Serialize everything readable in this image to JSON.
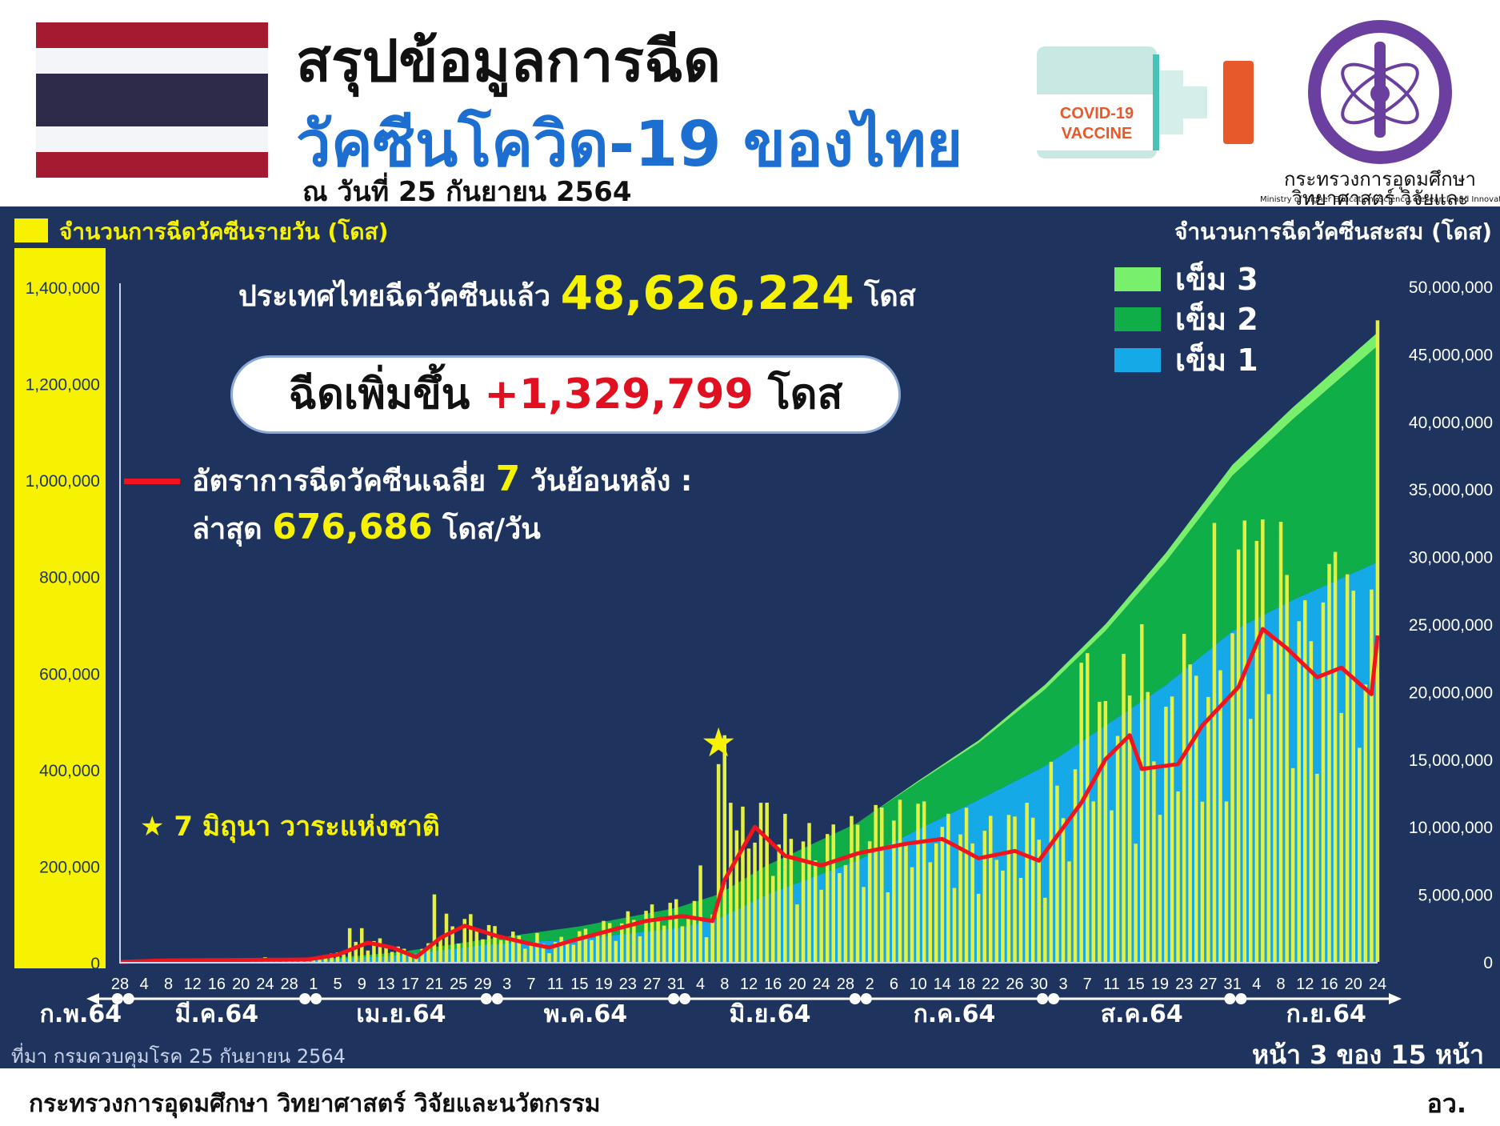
{
  "header": {
    "title_line1": "สรุปข้อมูลการฉีด",
    "title_line2": "วัคซีนโควิด-19 ของไทย",
    "date": "ณ วันที่ 25 กันยายน 2564",
    "vial_text_1": "COVID-19",
    "vial_text_2": "VACCINE",
    "ministry_th": "กระทรวงการอุดมศึกษา วิทยาศาสตร์ วิจัยและนวัตกรรม",
    "ministry_en": "Ministry of Higher Education, Science, Research and Innovation"
  },
  "summary": {
    "total_prefix": "ประเทศไทยฉีดวัคซีนแล้ว",
    "total_value": "48,626,224",
    "total_unit": "โดส",
    "increase_prefix": "ฉีดเพิ่มขึ้น",
    "increase_value": "+1,329,799",
    "increase_unit": "โดส",
    "avg_line1_a": "อัตราการฉีดวัคซีนเฉลี่ย",
    "avg_line1_days": "7",
    "avg_line1_b": "วันย้อนหลัง :",
    "avg_line2_a": "ล่าสุด",
    "avg_value": "676,686",
    "avg_unit": "โดส/วัน",
    "star_note": "7 มิถุนา วาระแห่งชาติ"
  },
  "labels": {
    "daily_axis": "จำนวนการฉีดวัคซีนรายวัน (โดส)",
    "cum_axis": "จำนวนการฉีดวัคซีนสะสม (โดส)",
    "source": "ที่มา กรมควบคุมโรค 25 กันยายน 2564",
    "page": "หน้า 3 ของ 15 หน้า",
    "footer_left": "กระทรวงการอุดมศึกษา วิทยาศาสตร์ วิจัยและนวัตกรรม",
    "footer_right": "อว."
  },
  "colors": {
    "panel": "#1e345f",
    "daily_bar": "#e4f043",
    "dose1": "#16a9e8",
    "dose2": "#0fae48",
    "dose3": "#78f06c",
    "avg_line": "#f0141e",
    "accent_yellow": "#f7f300"
  },
  "chart_data": {
    "type": "bar",
    "secondary_type": "area",
    "x_start_date": "2021-02-28",
    "x_end_date": "2021-09-24",
    "y_left": {
      "min": 0,
      "max": 1400000,
      "ticks": [
        "0",
        "200,000",
        "400,000",
        "600,000",
        "800,000",
        "1,000,000",
        "1,200,000",
        "1,400,000"
      ]
    },
    "y_right": {
      "min": 0,
      "max": 50000000,
      "ticks": [
        "0",
        "5,000,000",
        "10,000,000",
        "15,000,000",
        "20,000,000",
        "25,000,000",
        "30,000,000",
        "35,000,000",
        "40,000,000",
        "45,000,000",
        "50,000,000"
      ]
    },
    "x_tick_labels": [
      "28",
      "4",
      "8",
      "12",
      "16",
      "20",
      "24",
      "28",
      "1",
      "5",
      "9",
      "13",
      "17",
      "21",
      "25",
      "29",
      "3",
      "7",
      "11",
      "15",
      "19",
      "23",
      "27",
      "31",
      "4",
      "8",
      "12",
      "16",
      "20",
      "24",
      "28",
      "2",
      "6",
      "10",
      "14",
      "18",
      "22",
      "26",
      "30",
      "3",
      "7",
      "11",
      "15",
      "19",
      "23",
      "27",
      "31",
      "4",
      "8",
      "12",
      "16",
      "20",
      "24"
    ],
    "months": [
      "ก.พ.64",
      "มี.ค.64",
      "เม.ย.64",
      "พ.ค.64",
      "มิ.ย.64",
      "ก.ค.64",
      "ส.ค.64",
      "ก.ย.64"
    ],
    "series": [
      {
        "name": "เข็ม 3",
        "axis": "right",
        "type": "area",
        "points": [
          [
            "2021-02-28",
            0
          ],
          [
            "2021-04-30",
            0
          ],
          [
            "2021-06-30",
            0
          ],
          [
            "2021-07-20",
            200000
          ],
          [
            "2021-08-10",
            500000
          ],
          [
            "2021-08-31",
            800000
          ],
          [
            "2021-09-24",
            1000000
          ]
        ]
      },
      {
        "name": "เข็ม 2",
        "axis": "right",
        "type": "area",
        "points": [
          [
            "2021-02-28",
            0
          ],
          [
            "2021-03-31",
            30000
          ],
          [
            "2021-04-30",
            400000
          ],
          [
            "2021-05-31",
            1500000
          ],
          [
            "2021-06-30",
            2800000
          ],
          [
            "2021-07-20",
            4200000
          ],
          [
            "2021-08-10",
            7000000
          ],
          [
            "2021-08-31",
            11500000
          ],
          [
            "2021-09-24",
            16000000
          ]
        ]
      },
      {
        "name": "เข็ม 1",
        "axis": "right",
        "type": "area",
        "points": [
          [
            "2021-02-28",
            0
          ],
          [
            "2021-03-31",
            100000
          ],
          [
            "2021-04-15",
            500000
          ],
          [
            "2021-04-30",
            1300000
          ],
          [
            "2021-05-15",
            1700000
          ],
          [
            "2021-05-31",
            2500000
          ],
          [
            "2021-06-07",
            3200000
          ],
          [
            "2021-06-15",
            5000000
          ],
          [
            "2021-06-30",
            7500000
          ],
          [
            "2021-07-10",
            9800000
          ],
          [
            "2021-07-20",
            12000000
          ],
          [
            "2021-07-31",
            14500000
          ],
          [
            "2021-08-10",
            17500000
          ],
          [
            "2021-08-20",
            20500000
          ],
          [
            "2021-08-31",
            24500000
          ],
          [
            "2021-09-10",
            26800000
          ],
          [
            "2021-09-24",
            29600000
          ]
        ]
      },
      {
        "name": "avg7",
        "axis": "left",
        "type": "line",
        "points": [
          [
            "2021-02-28",
            0
          ],
          [
            "2021-03-07",
            3000
          ],
          [
            "2021-03-31",
            5000
          ],
          [
            "2021-04-05",
            15000
          ],
          [
            "2021-04-10",
            40000
          ],
          [
            "2021-04-14",
            30000
          ],
          [
            "2021-04-18",
            10000
          ],
          [
            "2021-04-22",
            50000
          ],
          [
            "2021-04-26",
            75000
          ],
          [
            "2021-05-01",
            55000
          ],
          [
            "2021-05-06",
            40000
          ],
          [
            "2021-05-10",
            30000
          ],
          [
            "2021-05-14",
            45000
          ],
          [
            "2021-05-20",
            65000
          ],
          [
            "2021-05-26",
            85000
          ],
          [
            "2021-06-01",
            95000
          ],
          [
            "2021-06-06",
            85000
          ],
          [
            "2021-06-08",
            170000
          ],
          [
            "2021-06-13",
            280000
          ],
          [
            "2021-06-18",
            220000
          ],
          [
            "2021-06-24",
            200000
          ],
          [
            "2021-06-30",
            225000
          ],
          [
            "2021-07-08",
            245000
          ],
          [
            "2021-07-14",
            255000
          ],
          [
            "2021-07-20",
            215000
          ],
          [
            "2021-07-26",
            230000
          ],
          [
            "2021-07-30",
            210000
          ],
          [
            "2021-08-06",
            330000
          ],
          [
            "2021-08-10",
            420000
          ],
          [
            "2021-08-14",
            470000
          ],
          [
            "2021-08-16",
            400000
          ],
          [
            "2021-08-22",
            410000
          ],
          [
            "2021-08-26",
            490000
          ],
          [
            "2021-09-01",
            570000
          ],
          [
            "2021-09-05",
            690000
          ],
          [
            "2021-09-09",
            650000
          ],
          [
            "2021-09-14",
            590000
          ],
          [
            "2021-09-18",
            610000
          ],
          [
            "2021-09-23",
            555000
          ],
          [
            "2021-09-24",
            676686
          ]
        ]
      },
      {
        "name": "daily",
        "axis": "left",
        "type": "bar",
        "points": [
          [
            "2021-03-14",
            3000
          ],
          [
            "2021-03-24",
            10000
          ],
          [
            "2021-04-07",
            70000
          ],
          [
            "2021-04-09",
            70000
          ],
          [
            "2021-04-21",
            140000
          ],
          [
            "2021-04-23",
            100000
          ],
          [
            "2021-05-08",
            60000
          ],
          [
            "2021-05-22",
            80000
          ],
          [
            "2021-05-31",
            130000
          ],
          [
            "2021-06-04",
            200000
          ],
          [
            "2021-06-07",
            410000
          ],
          [
            "2021-06-08",
            470000
          ],
          [
            "2021-06-09",
            330000
          ],
          [
            "2021-06-14",
            330000
          ],
          [
            "2021-06-26",
            285000
          ],
          [
            "2021-07-04",
            320000
          ],
          [
            "2021-07-14",
            280000
          ],
          [
            "2021-07-28",
            330000
          ],
          [
            "2021-08-01",
            415000
          ],
          [
            "2021-08-06",
            620000
          ],
          [
            "2021-08-07",
            640000
          ],
          [
            "2021-08-16",
            700000
          ],
          [
            "2021-08-23",
            680000
          ],
          [
            "2021-08-28",
            910000
          ],
          [
            "2021-09-01",
            855000
          ],
          [
            "2021-09-02",
            915000
          ],
          [
            "2021-09-07",
            670000
          ],
          [
            "2021-09-12",
            750000
          ],
          [
            "2021-09-17",
            850000
          ],
          [
            "2021-09-24",
            1329799
          ]
        ]
      }
    ]
  }
}
